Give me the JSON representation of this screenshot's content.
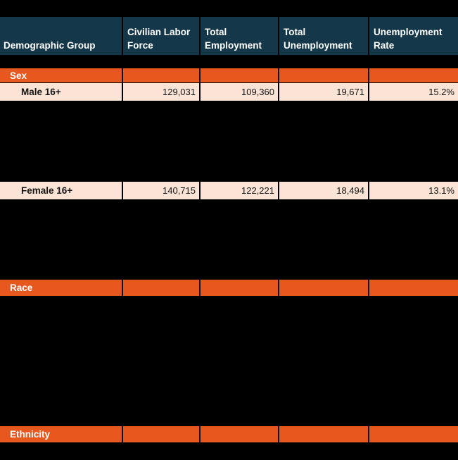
{
  "colors": {
    "background": "#000000",
    "header_bg": "#15374A",
    "header_text": "#FFFFFF",
    "section_bg": "#E7581E",
    "section_text": "#FFFFFF",
    "data_bg": "#FBE3D5",
    "data_text": "#151515",
    "grid_line": "#000000"
  },
  "table": {
    "header": [
      "Demographic Group",
      "Civilian Labor Force",
      "Total Employment",
      "Total Unemployment",
      "Unemployment Rate"
    ],
    "sections": {
      "sex": {
        "label": "Sex"
      },
      "race": {
        "label": "Race"
      },
      "ethnicity": {
        "label": "Ethnicity"
      }
    },
    "rows": {
      "male": {
        "label": "Male 16+",
        "values": [
          "129,031",
          "109,360",
          "19,671",
          "15.2%"
        ]
      },
      "female": {
        "label": "Female 16+",
        "values": [
          "140,715",
          "122,221",
          "18,494",
          "13.1%"
        ]
      }
    }
  },
  "chart_data": {
    "type": "table",
    "columns": [
      "Demographic Group",
      "Civilian Labor Force",
      "Total Employment",
      "Total Unemployment",
      "Unemployment Rate"
    ],
    "rows": [
      {
        "demographic_group": "Sex",
        "row_type": "section_header",
        "civilian_labor_force": null,
        "total_employment": null,
        "total_unemployment": null,
        "unemployment_rate_percent": null
      },
      {
        "demographic_group": "Male 16+",
        "row_type": "data",
        "civilian_labor_force": 129031,
        "total_employment": 109360,
        "total_unemployment": 19671,
        "unemployment_rate_percent": 15.2
      },
      {
        "demographic_group": "Female 16+",
        "row_type": "data",
        "civilian_labor_force": 140715,
        "total_employment": 122221,
        "total_unemployment": 18494,
        "unemployment_rate_percent": 13.1
      },
      {
        "demographic_group": "Race",
        "row_type": "section_header",
        "civilian_labor_force": null,
        "total_employment": null,
        "total_unemployment": null,
        "unemployment_rate_percent": null
      },
      {
        "demographic_group": "Ethnicity",
        "row_type": "section_header",
        "civilian_labor_force": null,
        "total_employment": null,
        "total_unemployment": null,
        "unemployment_rate_percent": null
      }
    ]
  }
}
